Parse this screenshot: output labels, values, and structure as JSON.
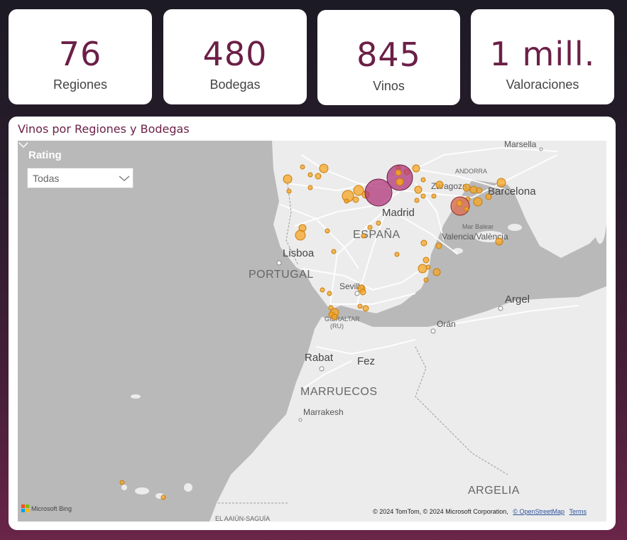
{
  "kpis": [
    {
      "value": "76",
      "label": "Regiones"
    },
    {
      "value": "480",
      "label": "Bodegas"
    },
    {
      "value": "845",
      "label": "Vinos"
    },
    {
      "value": "1 mill.",
      "label": "Valoraciones"
    }
  ],
  "map": {
    "title": "Vinos por Regiones y Bodegas",
    "filter": {
      "label": "Rating",
      "selected": "Todas"
    },
    "labels": {
      "marsella": "Marsella",
      "andorra": "ANDORRA",
      "zaragoza": "Zaragoza",
      "barcelona": "Barcelona",
      "madrid": "Madrid",
      "espana": "ESPAÑA",
      "mar_balear": "Mar Balear",
      "valencia": "Valencia/València",
      "lisboa": "Lisboa",
      "portugal": "PORTUGAL",
      "sevilla": "Sevilla",
      "argel": "Argel",
      "oran": "Orán",
      "gibraltar": "GIBRALTAR",
      "gibraltar_sub": "(RU)",
      "rabat": "Rabat",
      "fez": "Fez",
      "marruecos": "MARRUECOS",
      "marrakesh": "Marrakesh",
      "argelia": "ARGELIA",
      "el_aaiun": "EL AAIÚN-SAGUÍA"
    },
    "attribution": {
      "brand": "Microsoft Bing",
      "copyright": "© 2024 TomTom, © 2024 Microsoft Corporation,",
      "osm": "© OpenStreetMap",
      "terms": "Terms"
    },
    "colors": {
      "small_marker": "#f5a623",
      "large_marker": "#b0357a",
      "mid_marker": "#d9735a",
      "title": "#6b1f46"
    }
  }
}
